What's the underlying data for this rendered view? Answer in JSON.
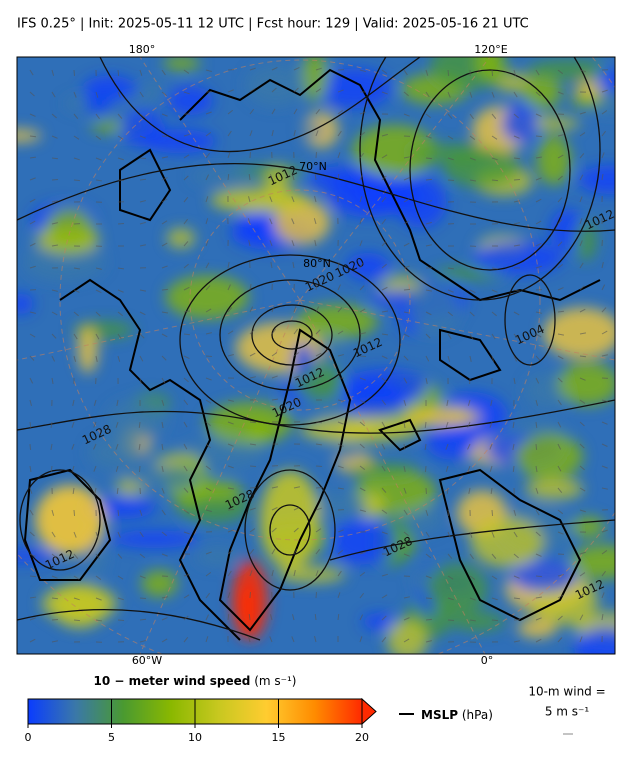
{
  "header": {
    "title": "IFS 0.25°  |  Init: 2025-05-11 12 UTC  |  Fcst hour: 129  |  Valid: 2025-05-16 21 UTC"
  },
  "map": {
    "lon_labels_top": [
      "180°",
      "120°E"
    ],
    "lon_labels_bottom": [
      "60°W",
      "0°"
    ],
    "lat_labels": [
      "70°N",
      "80°N"
    ],
    "contour_labels": [
      "1012",
      "1020",
      "1012",
      "1020",
      "1028",
      "1028",
      "1012",
      "1012",
      "1004",
      "1012",
      "1020",
      "1012",
      "1028"
    ]
  },
  "colorbar": {
    "label": "10 − meter wind speed",
    "unit": "(m s⁻¹)",
    "range": [
      0,
      20
    ],
    "ticks": [
      0,
      5,
      10,
      15,
      20
    ],
    "colors": [
      "#0a3cff",
      "#3a78a8",
      "#4a9a30",
      "#8ab800",
      "#c8c820",
      "#ffcc30",
      "#ff8c00",
      "#ff2a00"
    ]
  },
  "legend": {
    "line_label": "MSLP",
    "line_unit": "(hPa)"
  },
  "wind_key": {
    "label": "10-m wind =",
    "value": "5 m s⁻¹"
  }
}
